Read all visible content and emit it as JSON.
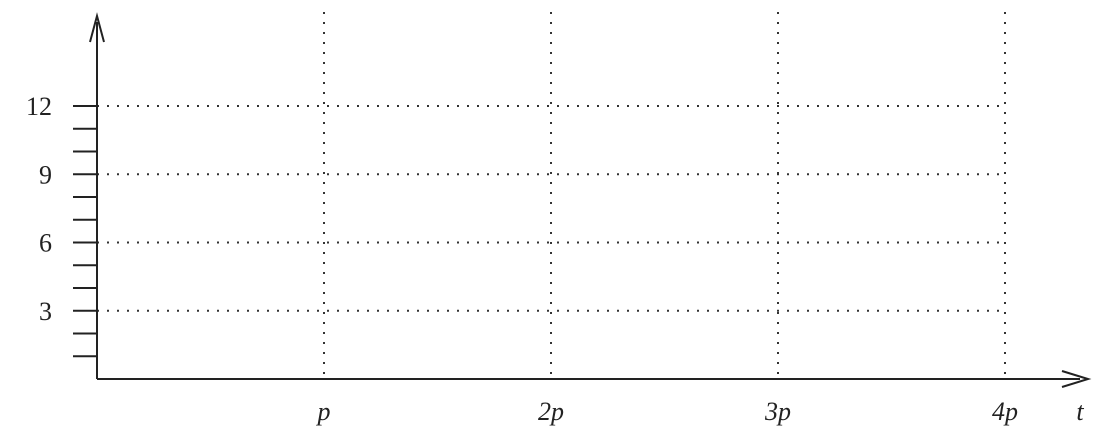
{
  "chart_data": {
    "type": "line",
    "title": "",
    "xlabel": "t",
    "ylabel": "",
    "x_ticks": [
      "p",
      "2p",
      "3p",
      "4p"
    ],
    "y_ticks": [
      "3",
      "6",
      "9",
      "12"
    ],
    "y_tick_values": [
      3,
      6,
      9,
      12
    ],
    "x_tick_values": [
      1,
      2,
      3,
      4
    ],
    "xlim": [
      0,
      4.4
    ],
    "ylim": [
      0,
      15
    ],
    "y_minor_step": 1,
    "grid": true,
    "series": []
  }
}
